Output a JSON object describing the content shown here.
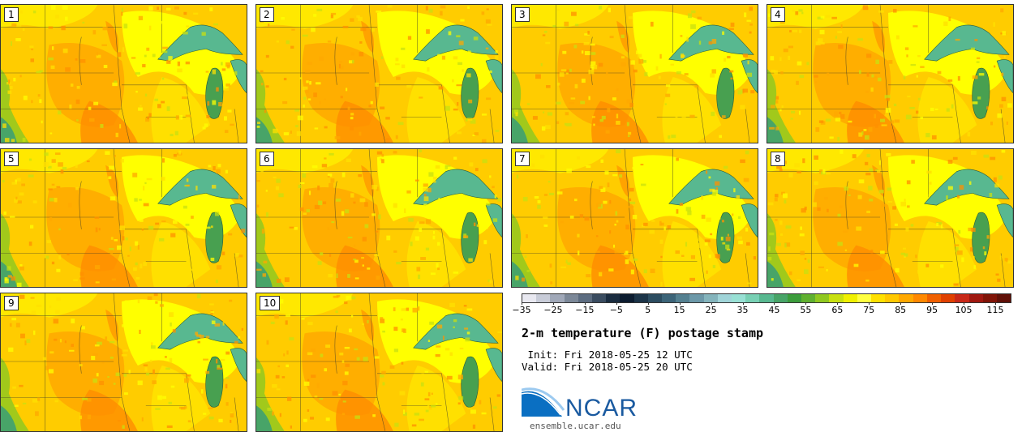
{
  "panels": [
    {
      "label": "1"
    },
    {
      "label": "2"
    },
    {
      "label": "3"
    },
    {
      "label": "4"
    },
    {
      "label": "5"
    },
    {
      "label": "6"
    },
    {
      "label": "7"
    },
    {
      "label": "8"
    },
    {
      "label": "9"
    },
    {
      "label": "10"
    }
  ],
  "colorbar": {
    "colors": [
      "#e8e8f0",
      "#c8ccd8",
      "#a0a8b8",
      "#7c8898",
      "#5c6c80",
      "#3a4c60",
      "#1a2c40",
      "#0c1c30",
      "#1c3448",
      "#2c4c60",
      "#3c6478",
      "#548090",
      "#6c98a8",
      "#84b4bc",
      "#a0d4d8",
      "#98e0d4",
      "#78d0b4",
      "#58b890",
      "#48a468",
      "#3c9c3c",
      "#60b030",
      "#90c820",
      "#c8e010",
      "#f0f000",
      "#ffff40",
      "#ffe000",
      "#ffc800",
      "#ffa800",
      "#ff8800",
      "#f06000",
      "#e04000",
      "#c82818",
      "#a01810",
      "#801408",
      "#601008"
    ],
    "tick_labels": [
      "-35",
      "-25",
      "-15",
      "-5",
      "5",
      "15",
      "25",
      "35",
      "45",
      "55",
      "65",
      "75",
      "85",
      "95",
      "105",
      "115"
    ]
  },
  "title": "2-m temperature (F) postage stamp",
  "init": " Init: Fri 2018-05-25 12 UTC",
  "valid": "Valid: Fri 2018-05-25 20 UTC",
  "logo_text": "NCAR",
  "site": "ensemble.ucar.edu"
}
